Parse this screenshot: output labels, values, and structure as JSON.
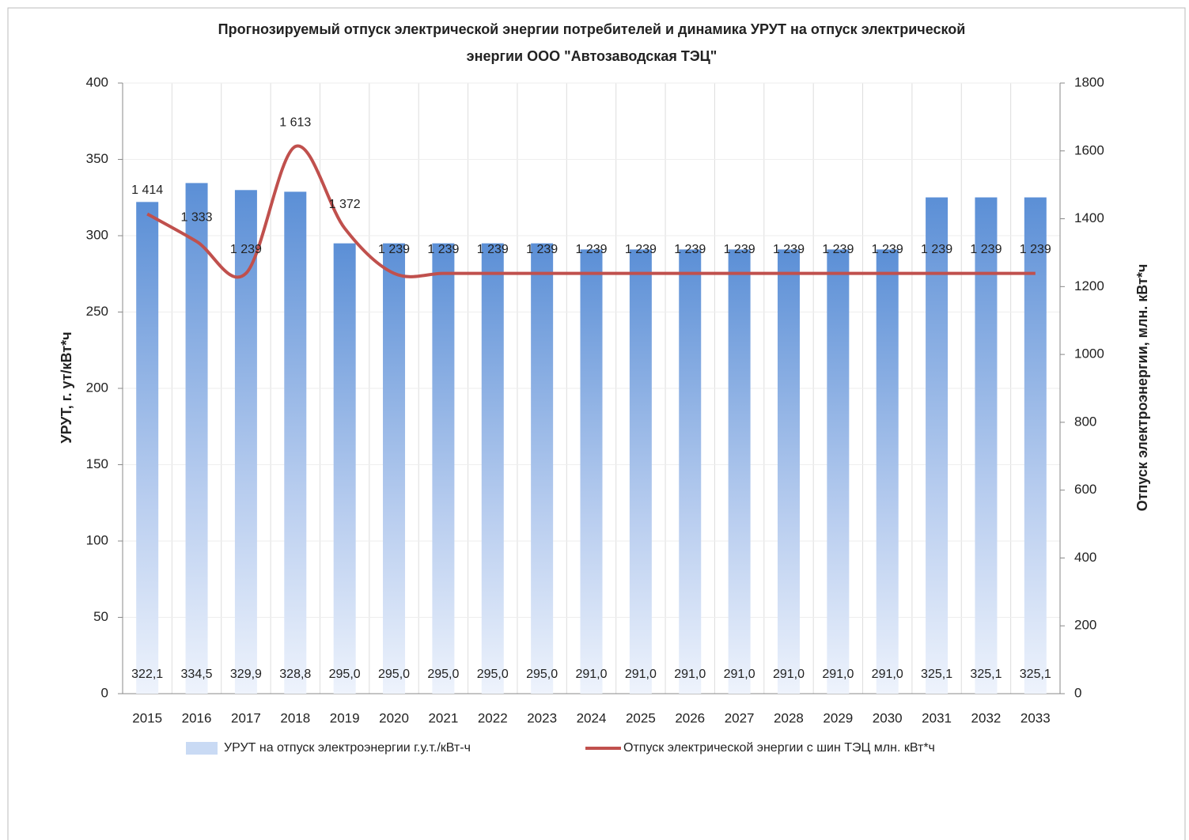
{
  "chart_data": {
    "type": "bar-line",
    "title": [
      "Прогнозируемый отпуск электрической энергии потребителей и динамика УРУТ на отпуск электрической",
      "энергии ООО \"Автозаводская ТЭЦ\""
    ],
    "y_label": "УРУТ, г. ут/кВт*ч",
    "y2_label": "Отпуск электроэнергии, млн. кВт*ч",
    "categories": [
      "2015",
      "2016",
      "2017",
      "2018",
      "2019",
      "2020",
      "2021",
      "2022",
      "2023",
      "2024",
      "2025",
      "2026",
      "2027",
      "2028",
      "2029",
      "2030",
      "2031",
      "2032",
      "2033"
    ],
    "series": [
      {
        "name": "УРУТ на отпуск электроэнергии г.у.т./кВт-ч",
        "type": "bar",
        "axis": "y",
        "color": "#5b8fd6",
        "values": [
          322.1,
          334.5,
          329.9,
          328.8,
          295.0,
          295.0,
          295.0,
          295.0,
          295.0,
          291.0,
          291.0,
          291.0,
          291.0,
          291.0,
          291.0,
          291.0,
          325.1,
          325.1,
          325.1
        ],
        "value_labels": [
          "322,1",
          "334,5",
          "329,9",
          "328,8",
          "295,0",
          "295,0",
          "295,0",
          "295,0",
          "295,0",
          "291,0",
          "291,0",
          "291,0",
          "291,0",
          "291,0",
          "291,0",
          "291,0",
          "325,1",
          "325,1",
          "325,1"
        ]
      },
      {
        "name": "Отпуск электрической энергии с шин ТЭЦ млн. кВт*ч",
        "type": "line",
        "axis": "y2",
        "color": "#c0504d",
        "values": [
          1414,
          1333,
          1239,
          1613,
          1372,
          1239,
          1239,
          1239,
          1239,
          1239,
          1239,
          1239,
          1239,
          1239,
          1239,
          1239,
          1239,
          1239,
          1239
        ],
        "value_labels": [
          "1 414",
          "1 333",
          "1 239",
          "1 613",
          "1 372",
          "1 239",
          "1 239",
          "1 239",
          "1 239",
          "1 239",
          "1 239",
          "1 239",
          "1 239",
          "1 239",
          "1 239",
          "1 239",
          "1 239",
          "1 239",
          "1 239"
        ]
      }
    ],
    "ylim": [
      0,
      400
    ],
    "yticks": [
      0,
      50,
      100,
      150,
      200,
      250,
      300,
      350,
      400
    ],
    "y2lim": [
      0,
      1800
    ],
    "y2ticks": [
      0,
      200,
      400,
      600,
      800,
      1000,
      1200,
      1400,
      1600,
      1800
    ],
    "grid": true,
    "legend": "bottom"
  }
}
